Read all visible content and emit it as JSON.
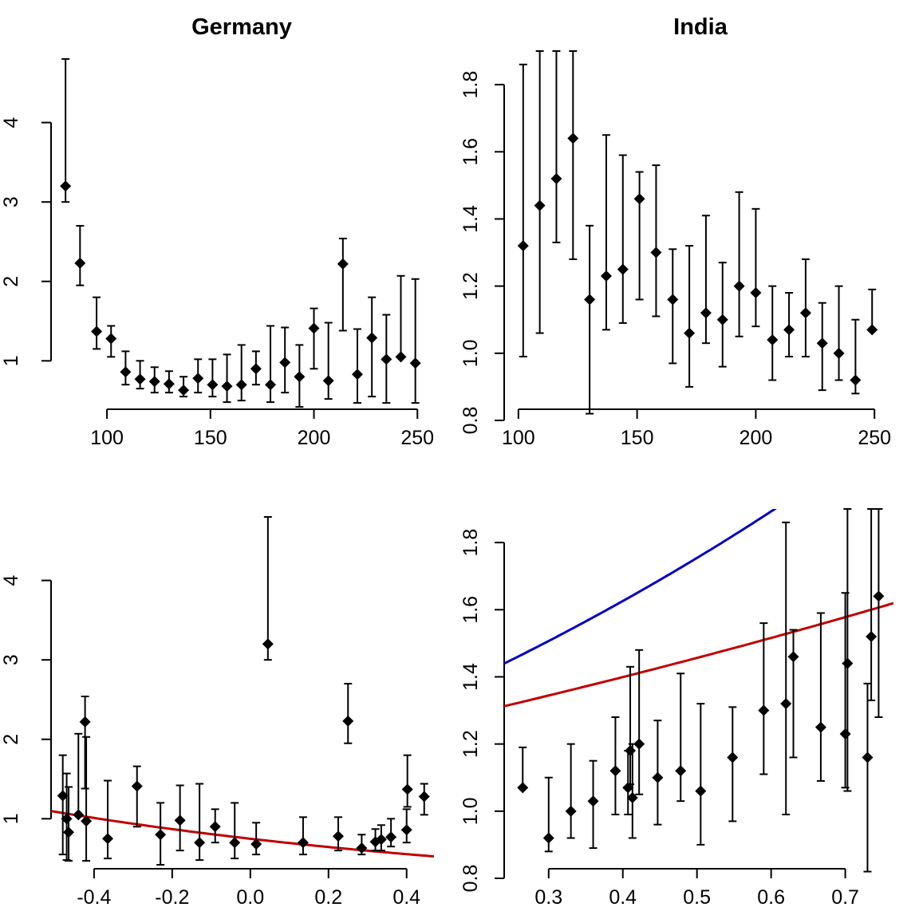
{
  "chart_data": [
    {
      "type": "scatter",
      "title": "Germany",
      "xlim": [
        73,
        258
      ],
      "ylim": [
        0.25,
        4.9
      ],
      "xticks": [
        100,
        150,
        200,
        250
      ],
      "yticks": [
        1,
        2,
        3,
        4
      ],
      "points": [
        {
          "x": 80,
          "y": 3.2,
          "lo": 3.0,
          "hi": 4.8
        },
        {
          "x": 87,
          "y": 2.23,
          "lo": 1.95,
          "hi": 2.7
        },
        {
          "x": 95,
          "y": 1.37,
          "lo": 1.15,
          "hi": 1.8
        },
        {
          "x": 102,
          "y": 1.28,
          "lo": 1.05,
          "hi": 1.44
        },
        {
          "x": 109,
          "y": 0.86,
          "lo": 0.7,
          "hi": 1.12
        },
        {
          "x": 116,
          "y": 0.77,
          "lo": 0.65,
          "hi": 1.0
        },
        {
          "x": 123,
          "y": 0.74,
          "lo": 0.6,
          "hi": 0.92
        },
        {
          "x": 130,
          "y": 0.71,
          "lo": 0.6,
          "hi": 0.87
        },
        {
          "x": 137,
          "y": 0.63,
          "lo": 0.55,
          "hi": 0.8
        },
        {
          "x": 144,
          "y": 0.78,
          "lo": 0.6,
          "hi": 1.02
        },
        {
          "x": 151,
          "y": 0.7,
          "lo": 0.55,
          "hi": 1.02
        },
        {
          "x": 158,
          "y": 0.68,
          "lo": 0.48,
          "hi": 1.08
        },
        {
          "x": 165,
          "y": 0.7,
          "lo": 0.5,
          "hi": 1.2
        },
        {
          "x": 172,
          "y": 0.9,
          "lo": 0.7,
          "hi": 1.12
        },
        {
          "x": 179,
          "y": 0.7,
          "lo": 0.48,
          "hi": 1.44
        },
        {
          "x": 186,
          "y": 0.98,
          "lo": 0.6,
          "hi": 1.42
        },
        {
          "x": 193,
          "y": 0.8,
          "lo": 0.42,
          "hi": 1.2
        },
        {
          "x": 200,
          "y": 1.41,
          "lo": 0.9,
          "hi": 1.66
        },
        {
          "x": 207,
          "y": 0.75,
          "lo": 0.52,
          "hi": 1.48
        },
        {
          "x": 214,
          "y": 2.22,
          "lo": 1.38,
          "hi": 2.54
        },
        {
          "x": 221,
          "y": 0.83,
          "lo": 0.47,
          "hi": 1.4
        },
        {
          "x": 228,
          "y": 1.29,
          "lo": 0.55,
          "hi": 1.8
        },
        {
          "x": 235,
          "y": 1.02,
          "lo": 0.47,
          "hi": 1.58
        },
        {
          "x": 242,
          "y": 1.05,
          "lo": 1.05,
          "hi": 2.07
        },
        {
          "x": 249,
          "y": 0.97,
          "lo": 0.47,
          "hi": 2.03
        }
      ]
    },
    {
      "type": "scatter",
      "title": "India",
      "xlim": [
        94,
        258
      ],
      "ylim": [
        0.8,
        1.9
      ],
      "xticks": [
        100,
        150,
        200,
        250
      ],
      "yticks": [
        0.8,
        1.0,
        1.2,
        1.4,
        1.6,
        1.8
      ],
      "points": [
        {
          "x": 102,
          "y": 1.32,
          "lo": 0.99,
          "hi": 1.86
        },
        {
          "x": 109,
          "y": 1.44,
          "lo": 1.06,
          "hi": 1.9
        },
        {
          "x": 116,
          "y": 1.52,
          "lo": 1.33,
          "hi": 1.9
        },
        {
          "x": 123,
          "y": 1.64,
          "lo": 1.28,
          "hi": 1.9
        },
        {
          "x": 130,
          "y": 1.16,
          "lo": 0.82,
          "hi": 1.38
        },
        {
          "x": 137,
          "y": 1.23,
          "lo": 1.07,
          "hi": 1.65
        },
        {
          "x": 144,
          "y": 1.25,
          "lo": 1.09,
          "hi": 1.59
        },
        {
          "x": 151,
          "y": 1.46,
          "lo": 1.16,
          "hi": 1.54
        },
        {
          "x": 158,
          "y": 1.3,
          "lo": 1.11,
          "hi": 1.56
        },
        {
          "x": 165,
          "y": 1.16,
          "lo": 0.97,
          "hi": 1.31
        },
        {
          "x": 172,
          "y": 1.06,
          "lo": 0.9,
          "hi": 1.32
        },
        {
          "x": 179,
          "y": 1.12,
          "lo": 1.03,
          "hi": 1.41
        },
        {
          "x": 186,
          "y": 1.1,
          "lo": 0.96,
          "hi": 1.27
        },
        {
          "x": 193,
          "y": 1.2,
          "lo": 1.05,
          "hi": 1.48
        },
        {
          "x": 200,
          "y": 1.18,
          "lo": 1.08,
          "hi": 1.43
        },
        {
          "x": 207,
          "y": 1.04,
          "lo": 0.92,
          "hi": 1.2
        },
        {
          "x": 214,
          "y": 1.07,
          "lo": 0.99,
          "hi": 1.18
        },
        {
          "x": 221,
          "y": 1.12,
          "lo": 0.99,
          "hi": 1.28
        },
        {
          "x": 228,
          "y": 1.03,
          "lo": 0.89,
          "hi": 1.15
        },
        {
          "x": 235,
          "y": 1.0,
          "lo": 0.92,
          "hi": 1.2
        },
        {
          "x": 242,
          "y": 0.92,
          "lo": 0.88,
          "hi": 1.1
        },
        {
          "x": 249,
          "y": 1.07,
          "lo": 1.07,
          "hi": 1.19
        }
      ]
    },
    {
      "type": "scatter",
      "title": "",
      "xlim": [
        -0.51,
        0.47
      ],
      "ylim": [
        0.25,
        4.9
      ],
      "xticks": [
        -0.4,
        -0.2,
        0.0,
        0.2,
        0.4
      ],
      "yticks": [
        1,
        2,
        3,
        4
      ],
      "curves": [
        {
          "color": "#0000c0",
          "a": 2.89,
          "b": -2.5
        },
        {
          "color": "#c00000",
          "a": -0.29,
          "b": -0.75
        }
      ],
      "points": [
        {
          "x": -0.48,
          "y": 1.29,
          "lo": 0.55,
          "hi": 1.8
        },
        {
          "x": -0.47,
          "y": 1.0,
          "lo": 0.48,
          "hi": 1.57
        },
        {
          "x": -0.465,
          "y": 0.83,
          "lo": 0.47,
          "hi": 1.4
        },
        {
          "x": -0.44,
          "y": 1.05,
          "lo": 1.05,
          "hi": 2.07
        },
        {
          "x": -0.423,
          "y": 2.22,
          "lo": 1.38,
          "hi": 2.54
        },
        {
          "x": -0.42,
          "y": 0.97,
          "lo": 0.47,
          "hi": 2.03
        },
        {
          "x": -0.365,
          "y": 0.75,
          "lo": 0.5,
          "hi": 1.48
        },
        {
          "x": -0.29,
          "y": 1.41,
          "lo": 0.9,
          "hi": 1.66
        },
        {
          "x": -0.23,
          "y": 0.8,
          "lo": 0.42,
          "hi": 1.2
        },
        {
          "x": -0.18,
          "y": 0.98,
          "lo": 0.6,
          "hi": 1.42
        },
        {
          "x": -0.13,
          "y": 0.7,
          "lo": 0.48,
          "hi": 1.44
        },
        {
          "x": -0.09,
          "y": 0.9,
          "lo": 0.7,
          "hi": 1.12
        },
        {
          "x": -0.04,
          "y": 0.7,
          "lo": 0.5,
          "hi": 1.2
        },
        {
          "x": 0.045,
          "y": 3.2,
          "lo": 3.0,
          "hi": 4.8
        },
        {
          "x": 0.015,
          "y": 0.68,
          "lo": 0.55,
          "hi": 0.95
        },
        {
          "x": 0.135,
          "y": 0.7,
          "lo": 0.55,
          "hi": 1.02
        },
        {
          "x": 0.225,
          "y": 0.78,
          "lo": 0.6,
          "hi": 1.02
        },
        {
          "x": 0.25,
          "y": 2.23,
          "lo": 1.95,
          "hi": 2.7
        },
        {
          "x": 0.285,
          "y": 0.63,
          "lo": 0.55,
          "hi": 0.8
        },
        {
          "x": 0.32,
          "y": 0.71,
          "lo": 0.6,
          "hi": 0.87
        },
        {
          "x": 0.335,
          "y": 0.74,
          "lo": 0.6,
          "hi": 0.92
        },
        {
          "x": 0.36,
          "y": 0.77,
          "lo": 0.65,
          "hi": 1.0
        },
        {
          "x": 0.4,
          "y": 0.86,
          "lo": 0.7,
          "hi": 1.12
        },
        {
          "x": 0.402,
          "y": 1.37,
          "lo": 1.15,
          "hi": 1.8
        },
        {
          "x": 0.445,
          "y": 1.28,
          "lo": 1.05,
          "hi": 1.44
        }
      ]
    },
    {
      "type": "scatter",
      "title": "",
      "xlim": [
        0.24,
        0.765
      ],
      "ylim": [
        0.8,
        1.9
      ],
      "xticks": [
        0.3,
        0.4,
        0.5,
        0.6,
        0.7
      ],
      "yticks": [
        0.8,
        1.0,
        1.2,
        1.4,
        1.6,
        1.8
      ],
      "curves": [
        {
          "color": "#0000c0",
          "a": 0.182,
          "b": 0.76
        },
        {
          "color": "#c00000",
          "a": 0.176,
          "b": 0.4
        }
      ],
      "points": [
        {
          "x": 0.265,
          "y": 1.07,
          "lo": 1.07,
          "hi": 1.19
        },
        {
          "x": 0.3,
          "y": 0.92,
          "lo": 0.88,
          "hi": 1.1
        },
        {
          "x": 0.33,
          "y": 1.0,
          "lo": 0.92,
          "hi": 1.2
        },
        {
          "x": 0.36,
          "y": 1.03,
          "lo": 0.89,
          "hi": 1.15
        },
        {
          "x": 0.39,
          "y": 1.12,
          "lo": 0.99,
          "hi": 1.28
        },
        {
          "x": 0.407,
          "y": 1.07,
          "lo": 0.99,
          "hi": 1.18
        },
        {
          "x": 0.41,
          "y": 1.18,
          "lo": 1.08,
          "hi": 1.43
        },
        {
          "x": 0.413,
          "y": 1.04,
          "lo": 0.92,
          "hi": 1.2
        },
        {
          "x": 0.422,
          "y": 1.2,
          "lo": 1.05,
          "hi": 1.48
        },
        {
          "x": 0.447,
          "y": 1.1,
          "lo": 0.96,
          "hi": 1.27
        },
        {
          "x": 0.478,
          "y": 1.12,
          "lo": 1.03,
          "hi": 1.41
        },
        {
          "x": 0.505,
          "y": 1.06,
          "lo": 0.9,
          "hi": 1.32
        },
        {
          "x": 0.548,
          "y": 1.16,
          "lo": 0.97,
          "hi": 1.31
        },
        {
          "x": 0.59,
          "y": 1.3,
          "lo": 1.11,
          "hi": 1.56
        },
        {
          "x": 0.62,
          "y": 1.32,
          "lo": 0.99,
          "hi": 1.86
        },
        {
          "x": 0.63,
          "y": 1.46,
          "lo": 1.16,
          "hi": 1.54
        },
        {
          "x": 0.667,
          "y": 1.25,
          "lo": 1.09,
          "hi": 1.59
        },
        {
          "x": 0.7,
          "y": 1.23,
          "lo": 1.07,
          "hi": 1.65
        },
        {
          "x": 0.703,
          "y": 1.44,
          "lo": 1.06,
          "hi": 1.9
        },
        {
          "x": 0.73,
          "y": 1.16,
          "lo": 0.82,
          "hi": 1.38
        },
        {
          "x": 0.735,
          "y": 1.52,
          "lo": 1.33,
          "hi": 1.9
        },
        {
          "x": 0.745,
          "y": 1.64,
          "lo": 1.28,
          "hi": 1.9
        }
      ]
    }
  ]
}
